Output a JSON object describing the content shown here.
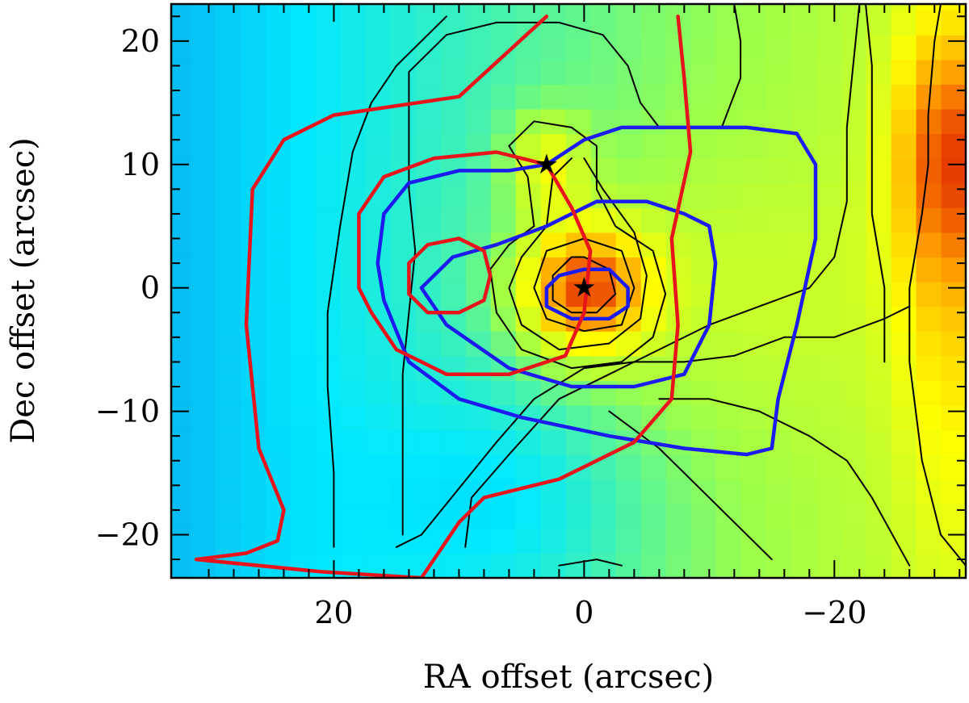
{
  "chart_data": {
    "type": "heatmap",
    "title": "",
    "xlabel": "RA offset (arcsec)",
    "ylabel": "Dec offset (arcsec)",
    "xlim": [
      33,
      -30.5
    ],
    "ylim": [
      -23.5,
      23
    ],
    "x_inverted": true,
    "grid": false,
    "colormap": [
      "#1a4fd8",
      "#00e8ff",
      "#9cff4a",
      "#ffff00",
      "#ff9a00",
      "#e02000"
    ],
    "x_ticks": [
      20,
      0,
      -20
    ],
    "x_tick_labels": [
      "20",
      "0",
      "−20"
    ],
    "y_ticks": [
      20,
      10,
      0,
      -10,
      -20
    ],
    "y_tick_labels": [
      "20",
      "10",
      "0",
      "−10",
      "−20"
    ],
    "markers": [
      {
        "name": "star",
        "symbol": "★",
        "x": 0.0,
        "y": 0.0
      },
      {
        "name": "star",
        "symbol": "★",
        "x": 3.0,
        "y": 10.0
      }
    ],
    "contour_colors": {
      "black": "#000000",
      "red": "#e8141c",
      "blue": "#1c1cf0"
    },
    "red_contours": [
      [
        [
          3,
          22
        ],
        [
          10,
          15.5
        ],
        [
          20,
          14
        ],
        [
          24,
          12
        ],
        [
          26.5,
          8
        ],
        [
          27,
          -3
        ],
        [
          26,
          -13
        ],
        [
          24,
          -18
        ],
        [
          24.5,
          -20.5
        ],
        [
          27,
          -21.5
        ],
        [
          31,
          -22
        ],
        [
          21,
          -23
        ],
        [
          13,
          -23.5
        ],
        [
          10,
          -19
        ],
        [
          8,
          -17
        ],
        [
          2,
          -15.5
        ],
        [
          -4,
          -12.5
        ],
        [
          -7,
          -9
        ],
        [
          -7.5,
          -3
        ],
        [
          -7,
          4
        ],
        [
          -8.5,
          11
        ],
        [
          -8,
          17
        ],
        [
          -7.5,
          22
        ]
      ],
      [
        [
          3,
          10
        ],
        [
          7,
          11
        ],
        [
          12,
          10.5
        ],
        [
          16,
          9
        ],
        [
          18,
          6
        ],
        [
          18,
          0
        ],
        [
          17,
          -2
        ],
        [
          15,
          -5
        ],
        [
          11,
          -7
        ],
        [
          6,
          -7
        ],
        [
          1.5,
          -5.5
        ],
        [
          0,
          -2
        ],
        [
          -0.5,
          3
        ],
        [
          1,
          6.5
        ],
        [
          3,
          10
        ]
      ],
      [
        [
          10,
          4
        ],
        [
          12.5,
          3.5
        ],
        [
          14,
          2
        ],
        [
          14,
          -0.5
        ],
        [
          12.5,
          -2
        ],
        [
          10,
          -2
        ],
        [
          8,
          -1
        ],
        [
          7.5,
          1
        ],
        [
          8,
          3
        ],
        [
          10,
          4
        ]
      ]
    ],
    "blue_contours": [
      [
        [
          3,
          10
        ],
        [
          6,
          9.5
        ],
        [
          10,
          9.5
        ],
        [
          14,
          8.5
        ],
        [
          16,
          6
        ],
        [
          16.5,
          2
        ],
        [
          16,
          -1
        ],
        [
          14,
          -6
        ],
        [
          10,
          -9
        ],
        [
          5,
          -10.5
        ],
        [
          -2,
          -12
        ],
        [
          -8,
          -13
        ],
        [
          -13,
          -13.5
        ],
        [
          -15,
          -13
        ],
        [
          -15.5,
          -9
        ],
        [
          -17,
          -3
        ],
        [
          -18.5,
          4
        ],
        [
          -18.5,
          10
        ],
        [
          -17,
          12.5
        ],
        [
          -13,
          13
        ],
        [
          -7,
          13
        ],
        [
          -3,
          13
        ],
        [
          0,
          12
        ],
        [
          3,
          10
        ]
      ],
      [
        [
          -1,
          7
        ],
        [
          -5,
          7
        ],
        [
          -8,
          6
        ],
        [
          -10,
          5
        ],
        [
          -10.5,
          2
        ],
        [
          -10,
          -3
        ],
        [
          -8,
          -7
        ],
        [
          -4,
          -8
        ],
        [
          1,
          -8
        ],
        [
          6,
          -6.5
        ],
        [
          11,
          -3
        ],
        [
          13,
          0
        ],
        [
          10.5,
          2.5
        ],
        [
          7,
          3.5
        ],
        [
          3,
          5
        ],
        [
          -1,
          7
        ]
      ],
      [
        [
          0,
          1.5
        ],
        [
          -2,
          1.5
        ],
        [
          -3.5,
          0
        ],
        [
          -3.5,
          -1.5
        ],
        [
          -2,
          -2.5
        ],
        [
          1,
          -2.5
        ],
        [
          3,
          -1.5
        ],
        [
          3,
          0
        ],
        [
          2,
          1
        ],
        [
          0,
          1.5
        ]
      ]
    ],
    "black_contours": [
      [
        [
          20,
          -21
        ],
        [
          20,
          -15
        ],
        [
          20.5,
          -8
        ],
        [
          20.5,
          -2
        ],
        [
          19.5,
          5
        ],
        [
          18.5,
          11
        ],
        [
          17,
          15
        ],
        [
          15,
          18
        ],
        [
          13,
          20
        ],
        [
          11,
          22
        ]
      ],
      [
        [
          14.5,
          -20
        ],
        [
          14.5,
          -13
        ],
        [
          14.5,
          -7
        ],
        [
          14,
          -2
        ],
        [
          13.5,
          3
        ],
        [
          14,
          8
        ],
        [
          14,
          13
        ],
        [
          14,
          17.5
        ],
        [
          11,
          20.5
        ],
        [
          7,
          21.5
        ],
        [
          2,
          21.5
        ],
        [
          -1.5,
          20.5
        ],
        [
          -3.5,
          18
        ],
        [
          -4.5,
          15
        ],
        [
          -6,
          13
        ],
        [
          -11,
          13
        ],
        [
          -12.5,
          17
        ],
        [
          -12.5,
          20
        ],
        [
          -12,
          23
        ]
      ],
      [
        [
          9.5,
          -21
        ],
        [
          9,
          -17
        ],
        [
          6,
          -13.5
        ],
        [
          2,
          -9
        ],
        [
          -2,
          -7
        ],
        [
          -6,
          -5
        ],
        [
          -10,
          -3
        ],
        [
          -14,
          -1.5
        ],
        [
          -18,
          0
        ],
        [
          -20,
          2.5
        ],
        [
          -21,
          7
        ],
        [
          -21,
          13
        ],
        [
          -21.5,
          18
        ],
        [
          -22,
          23
        ]
      ],
      [
        [
          4,
          5
        ],
        [
          4.5,
          9
        ],
        [
          6,
          11.5
        ],
        [
          4,
          13.5
        ],
        [
          1,
          13
        ],
        [
          -1,
          11.5
        ],
        [
          -1,
          8
        ],
        [
          -2.5,
          5
        ],
        [
          -5.5,
          3
        ],
        [
          -6.5,
          -0.5
        ],
        [
          -5.5,
          -4
        ],
        [
          -3,
          -6
        ],
        [
          1,
          -6.5
        ],
        [
          5,
          -5
        ],
        [
          7,
          -2
        ],
        [
          7.5,
          1.5
        ],
        [
          6,
          3.5
        ],
        [
          4,
          5
        ]
      ],
      [
        [
          0,
          10.5
        ],
        [
          -1.5,
          8
        ],
        [
          -4,
          4.5
        ],
        [
          -5,
          1
        ],
        [
          -4.5,
          -2.5
        ],
        [
          -2,
          -4.5
        ],
        [
          2,
          -5
        ],
        [
          5,
          -3
        ],
        [
          6,
          0
        ],
        [
          5,
          2.5
        ],
        [
          3,
          5
        ],
        [
          2.5,
          9
        ],
        [
          1,
          10.5
        ]
      ],
      [
        [
          0,
          4
        ],
        [
          -3,
          3
        ],
        [
          -4,
          0
        ],
        [
          -3,
          -3
        ],
        [
          0,
          -3.5
        ],
        [
          3,
          -2.5
        ],
        [
          4,
          0
        ],
        [
          3,
          3
        ],
        [
          0,
          4
        ]
      ],
      [
        [
          0,
          2.5
        ],
        [
          -2,
          1.5
        ],
        [
          -2.5,
          -0.5
        ],
        [
          -1,
          -2
        ],
        [
          1,
          -2
        ],
        [
          2.5,
          -1
        ],
        [
          2.5,
          1
        ],
        [
          1,
          2.5
        ],
        [
          0,
          2.5
        ]
      ],
      [
        [
          15,
          -21
        ],
        [
          13,
          -20
        ],
        [
          7,
          -12.5
        ],
        [
          4,
          -9
        ],
        [
          0,
          -6.5
        ],
        [
          -4,
          -6
        ],
        [
          -8,
          -6
        ],
        [
          -12,
          -5.5
        ],
        [
          -16,
          -4
        ],
        [
          -20,
          -4
        ],
        [
          -24,
          -2.5
        ],
        [
          -26,
          -1.5
        ]
      ],
      [
        [
          -26,
          -22.5
        ],
        [
          -23,
          -17
        ],
        [
          -21,
          -14
        ],
        [
          -18,
          -12
        ],
        [
          -14,
          -10
        ],
        [
          -10,
          -9
        ],
        [
          -6,
          -9
        ]
      ],
      [
        [
          -15,
          -22
        ],
        [
          -12,
          -19
        ],
        [
          -9,
          -16
        ],
        [
          -6,
          -13
        ],
        [
          -2,
          -10
        ]
      ],
      [
        [
          2,
          -22.5
        ],
        [
          -1,
          -22
        ],
        [
          -3,
          -22.5
        ]
      ],
      [
        [
          -30.5,
          -22.5
        ],
        [
          -28.5,
          -20
        ],
        [
          -27,
          -14
        ],
        [
          -26,
          -6
        ],
        [
          -26,
          0
        ],
        [
          -27,
          6
        ],
        [
          -27.5,
          10
        ],
        [
          -27.5,
          14
        ],
        [
          -28,
          20
        ],
        [
          -28.5,
          23
        ]
      ],
      [
        [
          -22.5,
          23
        ],
        [
          -23,
          18
        ],
        [
          -23,
          12
        ],
        [
          -23,
          6
        ],
        [
          -24,
          0
        ],
        [
          -24,
          -6
        ]
      ]
    ]
  }
}
